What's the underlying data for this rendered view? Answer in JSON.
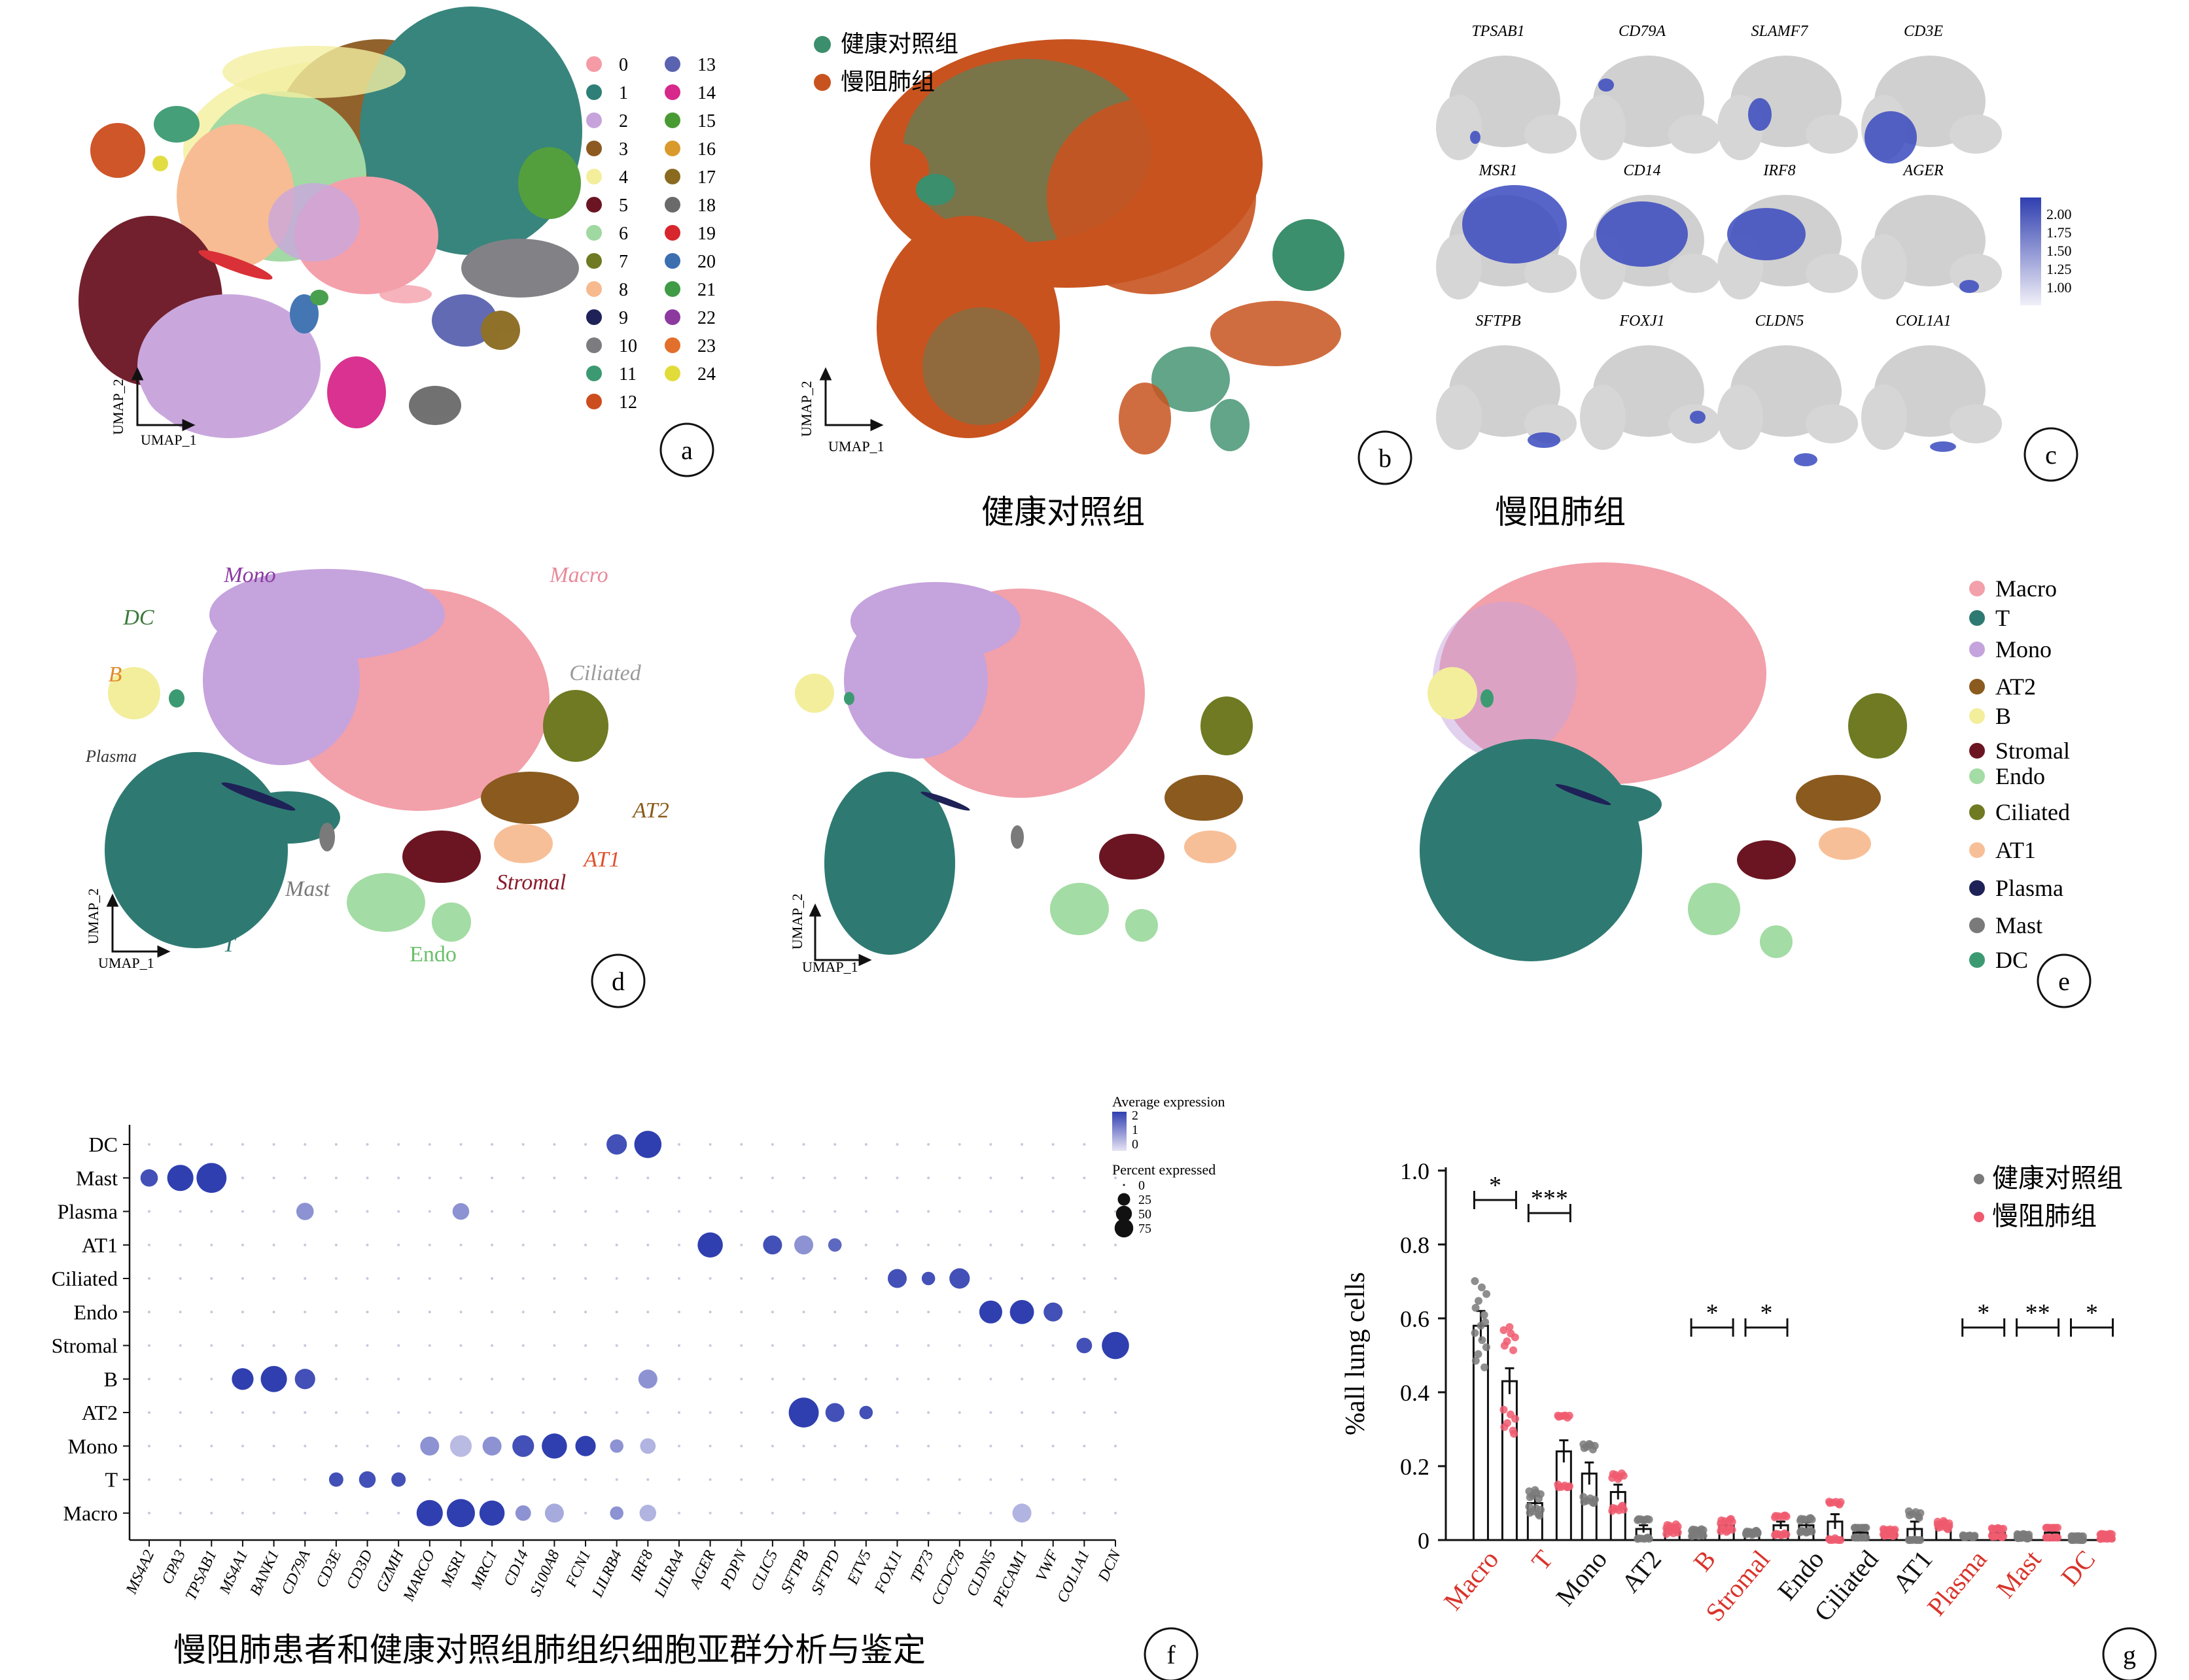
{
  "panel_letters": [
    "a",
    "b",
    "c",
    "d",
    "e",
    "f",
    "g"
  ],
  "axis_umap": {
    "x": "UMAP_1",
    "y": "UMAP_2"
  },
  "panel_a": {
    "cluster_ids": [
      "0",
      "1",
      "2",
      "3",
      "4",
      "5",
      "6",
      "7",
      "8",
      "9",
      "10",
      "11",
      "12",
      "13",
      "14",
      "15",
      "16",
      "17",
      "18",
      "19",
      "20",
      "21",
      "22",
      "23",
      "24"
    ],
    "cluster_colors": [
      "#f49ba6",
      "#2e7f77",
      "#c7a3dc",
      "#8c5a21",
      "#f3ee9c",
      "#6b1522",
      "#9fd8a0",
      "#6f7a22",
      "#f7b98e",
      "#1e2257",
      "#7c7c80",
      "#3c9a72",
      "#cc4d1e",
      "#5a63b0",
      "#d7288b",
      "#4a9a34",
      "#d99a2b",
      "#8a6a1f",
      "#6a6a6a",
      "#d7262d",
      "#3b6fb0",
      "#3f9b45",
      "#8c3aa0",
      "#e26f2b",
      "#e2dc3a"
    ]
  },
  "panel_b": {
    "legend": [
      "健康对照组",
      "慢阻肺组"
    ],
    "colors": [
      "#3b8f6c",
      "#c8531f"
    ]
  },
  "panel_c": {
    "genes": [
      "TPSAB1",
      "CD79A",
      "SLAMF7",
      "CD3E",
      "MSR1",
      "CD14",
      "IRF8",
      "AGER",
      "SFTPB",
      "FOXJ1",
      "CLDN5",
      "COL1A1"
    ],
    "colorbar_ticks": [
      "2.00",
      "1.75",
      "1.50",
      "1.25",
      "1.00"
    ]
  },
  "panel_d": {
    "labels": [
      {
        "name": "Mono",
        "color": "#8a3aa2"
      },
      {
        "name": "Macro",
        "color": "#e88a9a"
      },
      {
        "name": "DC",
        "color": "#3c7a3c"
      },
      {
        "name": "B",
        "color": "#e08a2b"
      },
      {
        "name": "Ciliated",
        "color": "#9a9a9a"
      },
      {
        "name": "Plasma",
        "color": "#333333"
      },
      {
        "name": "AT2",
        "color": "#8a5a1a"
      },
      {
        "name": "AT1",
        "color": "#e0502b"
      },
      {
        "name": "Stromal",
        "color": "#8a1a2a"
      },
      {
        "name": "Mast",
        "color": "#7a7a7a"
      },
      {
        "name": "T",
        "color": "#2e7a72"
      },
      {
        "name": "Endo",
        "color": "#6abf6a"
      }
    ]
  },
  "panel_e": {
    "group_titles": [
      "健康对照组",
      "慢阻肺组"
    ],
    "legend": [
      {
        "name": "Macro",
        "color": "#f2a0aa"
      },
      {
        "name": "T",
        "color": "#2e7a72"
      },
      {
        "name": "Mono",
        "color": "#c5a3dd"
      },
      {
        "name": "AT2",
        "color": "#8a5a1e"
      },
      {
        "name": "B",
        "color": "#f3ee9c"
      },
      {
        "name": "Stromal",
        "color": "#6b1522"
      },
      {
        "name": "Endo",
        "color": "#a3dca4"
      },
      {
        "name": "Ciliated",
        "color": "#6f7a22"
      },
      {
        "name": "AT1",
        "color": "#f7bf98"
      },
      {
        "name": "Plasma",
        "color": "#1e2257"
      },
      {
        "name": "Mast",
        "color": "#7a7a7a"
      },
      {
        "name": "DC",
        "color": "#3c9a72"
      }
    ]
  },
  "chart_data": [
    {
      "type": "dot",
      "title": "慢阻肺患者和健康对照组肺组织细胞亚群分析与鉴定",
      "rows": [
        "DC",
        "Mast",
        "Plasma",
        "AT1",
        "Ciliated",
        "Endo",
        "Stromal",
        "B",
        "AT2",
        "Mono",
        "T",
        "Macro"
      ],
      "genes": [
        "MS4A2",
        "CPA3",
        "TPSAB1",
        "MS4A1",
        "BANK1",
        "CD79A",
        "CD3E",
        "CD3D",
        "GZMH",
        "MARCO",
        "MSR1",
        "MRC1",
        "CD14",
        "S100A8",
        "FCN1",
        "LILRB4",
        "IRF8",
        "LILRA4",
        "AGER",
        "PDPN",
        "CLIC5",
        "SFTPB",
        "SFTPD",
        "ETV5",
        "FOXJ1",
        "TP73",
        "CCDC78",
        "CLDN5",
        "PECAM1",
        "VWF",
        "COL1A1",
        "DCN"
      ],
      "legend_expression": {
        "title": "Average expression",
        "ticks": [
          "2",
          "1",
          "0"
        ]
      },
      "legend_percent": {
        "title": "Percent expressed",
        "ticks": [
          "0",
          "25",
          "50",
          "75"
        ]
      },
      "dots": [
        {
          "row": "DC",
          "gene": "LILRB4",
          "pct": 30,
          "expr": 1.8
        },
        {
          "row": "DC",
          "gene": "IRF8",
          "pct": 60,
          "expr": 2.0
        },
        {
          "row": "Mast",
          "gene": "MS4A2",
          "pct": 20,
          "expr": 1.8
        },
        {
          "row": "Mast",
          "gene": "CPA3",
          "pct": 55,
          "expr": 2.0
        },
        {
          "row": "Mast",
          "gene": "TPSAB1",
          "pct": 75,
          "expr": 2.0
        },
        {
          "row": "Plasma",
          "gene": "CD79A",
          "pct": 20,
          "expr": 1.0
        },
        {
          "row": "Plasma",
          "gene": "MSR1",
          "pct": 18,
          "expr": 1.0
        },
        {
          "row": "AT1",
          "gene": "AGER",
          "pct": 50,
          "expr": 2.0
        },
        {
          "row": "AT1",
          "gene": "CLIC5",
          "pct": 25,
          "expr": 1.8
        },
        {
          "row": "AT1",
          "gene": "SFTPB",
          "pct": 25,
          "expr": 1.0
        },
        {
          "row": "AT1",
          "gene": "SFTPD",
          "pct": 10,
          "expr": 1.5
        },
        {
          "row": "Ciliated",
          "gene": "FOXJ1",
          "pct": 25,
          "expr": 1.8
        },
        {
          "row": "Ciliated",
          "gene": "TP73",
          "pct": 10,
          "expr": 1.8
        },
        {
          "row": "Ciliated",
          "gene": "CCDC78",
          "pct": 30,
          "expr": 1.8
        },
        {
          "row": "Endo",
          "gene": "CLDN5",
          "pct": 40,
          "expr": 2.0
        },
        {
          "row": "Endo",
          "gene": "PECAM1",
          "pct": 45,
          "expr": 2.0
        },
        {
          "row": "Endo",
          "gene": "VWF",
          "pct": 25,
          "expr": 1.8
        },
        {
          "row": "Stromal",
          "gene": "COL1A1",
          "pct": 15,
          "expr": 1.8
        },
        {
          "row": "Stromal",
          "gene": "DCN",
          "pct": 60,
          "expr": 2.0
        },
        {
          "row": "B",
          "gene": "MS4A1",
          "pct": 35,
          "expr": 2.0
        },
        {
          "row": "B",
          "gene": "BANK1",
          "pct": 55,
          "expr": 2.0
        },
        {
          "row": "B",
          "gene": "CD79A",
          "pct": 30,
          "expr": 1.8
        },
        {
          "row": "B",
          "gene": "IRF8",
          "pct": 25,
          "expr": 1.0
        },
        {
          "row": "AT2",
          "gene": "SFTPB",
          "pct": 75,
          "expr": 2.0
        },
        {
          "row": "AT2",
          "gene": "SFTPD",
          "pct": 25,
          "expr": 1.8
        },
        {
          "row": "AT2",
          "gene": "ETV5",
          "pct": 10,
          "expr": 1.8
        },
        {
          "row": "Mono",
          "gene": "MARCO",
          "pct": 25,
          "expr": 1.0
        },
        {
          "row": "Mono",
          "gene": "MSR1",
          "pct": 35,
          "expr": 0.5
        },
        {
          "row": "Mono",
          "gene": "MRC1",
          "pct": 25,
          "expr": 1.0
        },
        {
          "row": "Mono",
          "gene": "CD14",
          "pct": 35,
          "expr": 1.8
        },
        {
          "row": "Mono",
          "gene": "S100A8",
          "pct": 50,
          "expr": 2.0
        },
        {
          "row": "Mono",
          "gene": "FCN1",
          "pct": 30,
          "expr": 2.0
        },
        {
          "row": "Mono",
          "gene": "LILRB4",
          "pct": 10,
          "expr": 1.0
        },
        {
          "row": "Mono",
          "gene": "IRF8",
          "pct": 15,
          "expr": 0.6
        },
        {
          "row": "T",
          "gene": "CD3E",
          "pct": 12,
          "expr": 1.8
        },
        {
          "row": "T",
          "gene": "CD3D",
          "pct": 18,
          "expr": 1.8
        },
        {
          "row": "T",
          "gene": "GZMH",
          "pct": 12,
          "expr": 1.8
        },
        {
          "row": "Macro",
          "gene": "MARCO",
          "pct": 55,
          "expr": 2.0
        },
        {
          "row": "Macro",
          "gene": "MSR1",
          "pct": 65,
          "expr": 2.0
        },
        {
          "row": "Macro",
          "gene": "MRC1",
          "pct": 50,
          "expr": 2.0
        },
        {
          "row": "Macro",
          "gene": "CD14",
          "pct": 15,
          "expr": 1.0
        },
        {
          "row": "Macro",
          "gene": "S100A8",
          "pct": 25,
          "expr": 0.7
        },
        {
          "row": "Macro",
          "gene": "LILRB4",
          "pct": 10,
          "expr": 1.0
        },
        {
          "row": "Macro",
          "gene": "IRF8",
          "pct": 18,
          "expr": 0.6
        },
        {
          "row": "Macro",
          "gene": "PECAM1",
          "pct": 25,
          "expr": 0.6
        }
      ]
    },
    {
      "type": "bar",
      "ylabel": "%all lung cells",
      "ylim": [
        0,
        1.0
      ],
      "yticks": [
        "0",
        "0.2",
        "0.4",
        "0.6",
        "0.8",
        "1.0"
      ],
      "categories": [
        "Macro",
        "T",
        "Mono",
        "AT2",
        "B",
        "Stromal",
        "Endo",
        "Ciliated",
        "AT1",
        "Plasma",
        "Mast",
        "DC"
      ],
      "category_colors": [
        "#d9342b",
        "#d9342b",
        "#111111",
        "#111111",
        "#d9342b",
        "#d9342b",
        "#111111",
        "#111111",
        "#111111",
        "#d9342b",
        "#d9342b",
        "#d9342b"
      ],
      "significance": [
        "*",
        "***",
        "",
        "",
        "*",
        "*",
        "",
        "",
        "",
        "*",
        "**",
        "*"
      ],
      "series": [
        {
          "name": "健康对照组",
          "color": "#7a7a7a",
          "values": [
            0.58,
            0.1,
            0.18,
            0.03,
            0.02,
            0.02,
            0.04,
            0.02,
            0.03,
            0.01,
            0.01,
            0.005
          ],
          "errors": [
            0.04,
            0.02,
            0.03,
            0.01,
            0.005,
            0.005,
            0.008,
            0.005,
            0.02,
            0.003,
            0.003,
            0.002
          ]
        },
        {
          "name": "慢阻肺组",
          "color": "#f05a6e",
          "values": [
            0.43,
            0.24,
            0.13,
            0.03,
            0.04,
            0.04,
            0.05,
            0.02,
            0.04,
            0.02,
            0.02,
            0.01
          ],
          "errors": [
            0.035,
            0.03,
            0.02,
            0.01,
            0.01,
            0.01,
            0.02,
            0.005,
            0.01,
            0.005,
            0.005,
            0.003
          ]
        }
      ]
    }
  ]
}
